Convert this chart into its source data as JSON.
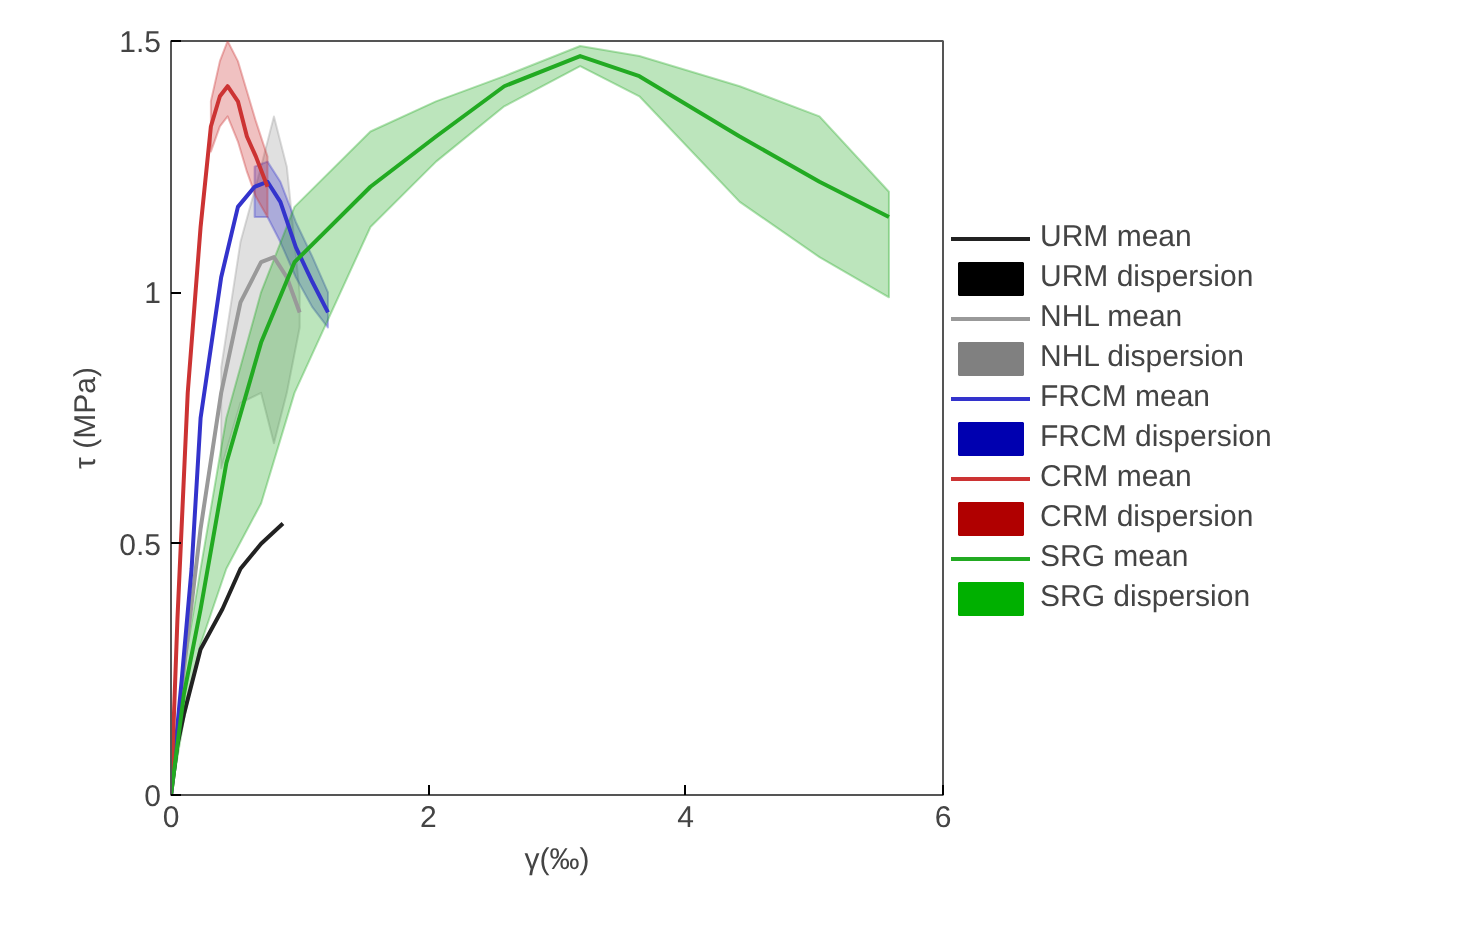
{
  "chart_data": {
    "type": "line",
    "xlabel": "γ(‰)",
    "ylabel": "τ (MPa)",
    "xlim": [
      0,
      6
    ],
    "ylim": [
      0,
      1.5
    ],
    "xticks": [
      0,
      2,
      4,
      6
    ],
    "yticks": [
      0,
      0.5,
      1,
      1.5
    ],
    "legend": "right",
    "grid": false,
    "series": [
      {
        "name": "URM mean",
        "color": "#222222",
        "x": [
          0,
          0.05,
          0.1,
          0.23,
          0.4,
          0.54,
          0.7,
          0.87
        ],
        "values": [
          0,
          0.1,
          0.16,
          0.29,
          0.37,
          0.45,
          0.5,
          0.54
        ]
      },
      {
        "name": "URM dispersion",
        "type": "area",
        "color": "#000000"
      },
      {
        "name": "NHL mean",
        "color": "#999999",
        "x": [
          0,
          0.1,
          0.23,
          0.39,
          0.54,
          0.7,
          0.8,
          0.9,
          1.0
        ],
        "values": [
          0,
          0.25,
          0.53,
          0.8,
          0.98,
          1.06,
          1.07,
          1.03,
          0.96
        ],
        "lower": [
          null,
          null,
          null,
          0.65,
          0.78,
          0.8,
          0.7,
          0.8,
          0.93
        ],
        "upper": [
          null,
          null,
          null,
          0.85,
          1.1,
          1.25,
          1.35,
          1.25,
          1.0
        ]
      },
      {
        "name": "NHL dispersion",
        "type": "area",
        "color": "#808080"
      },
      {
        "name": "FRCM mean",
        "color": "#3333cc",
        "x": [
          0,
          0.08,
          0.16,
          0.23,
          0.39,
          0.52,
          0.65,
          0.75,
          0.85,
          0.97,
          1.1,
          1.22
        ],
        "values": [
          0,
          0.22,
          0.45,
          0.75,
          1.03,
          1.17,
          1.21,
          1.22,
          1.18,
          1.09,
          1.02,
          0.96
        ],
        "lower": [
          null,
          null,
          null,
          null,
          null,
          null,
          1.15,
          1.15,
          1.1,
          1.03,
          0.97,
          0.93
        ],
        "upper": [
          null,
          null,
          null,
          null,
          null,
          null,
          1.25,
          1.26,
          1.22,
          1.14,
          1.07,
          1.0
        ]
      },
      {
        "name": "FRCM dispersion",
        "type": "area",
        "color": "#0000b0"
      },
      {
        "name": "CRM mean",
        "color": "#cc3333",
        "x": [
          0,
          0.05,
          0.13,
          0.23,
          0.31,
          0.38,
          0.44,
          0.52,
          0.59,
          0.66,
          0.75
        ],
        "values": [
          0,
          0.35,
          0.8,
          1.13,
          1.33,
          1.39,
          1.41,
          1.38,
          1.31,
          1.27,
          1.21
        ],
        "lower": [
          null,
          null,
          null,
          null,
          1.28,
          1.33,
          1.35,
          1.3,
          1.24,
          1.19,
          1.15
        ],
        "upper": [
          null,
          null,
          null,
          null,
          1.38,
          1.46,
          1.5,
          1.46,
          1.4,
          1.34,
          1.27
        ]
      },
      {
        "name": "CRM dispersion",
        "type": "area",
        "color": "#b00000"
      },
      {
        "name": "SRG mean",
        "color": "#22aa22",
        "x": [
          0,
          0.1,
          0.23,
          0.43,
          0.7,
          0.96,
          1.55,
          2.06,
          2.59,
          3.18,
          3.64,
          4.42,
          5.04,
          5.58
        ],
        "values": [
          0,
          0.2,
          0.37,
          0.66,
          0.9,
          1.06,
          1.21,
          1.31,
          1.41,
          1.47,
          1.43,
          1.31,
          1.22,
          1.15
        ],
        "lower": [
          0,
          0.15,
          0.3,
          0.45,
          0.58,
          0.8,
          1.13,
          1.26,
          1.37,
          1.45,
          1.39,
          1.18,
          1.07,
          0.99
        ],
        "upper": [
          0,
          0.25,
          0.45,
          0.75,
          1.0,
          1.17,
          1.32,
          1.38,
          1.43,
          1.49,
          1.47,
          1.41,
          1.35,
          1.2
        ]
      },
      {
        "name": "SRG dispersion",
        "type": "area",
        "color": "#00b000"
      }
    ]
  }
}
